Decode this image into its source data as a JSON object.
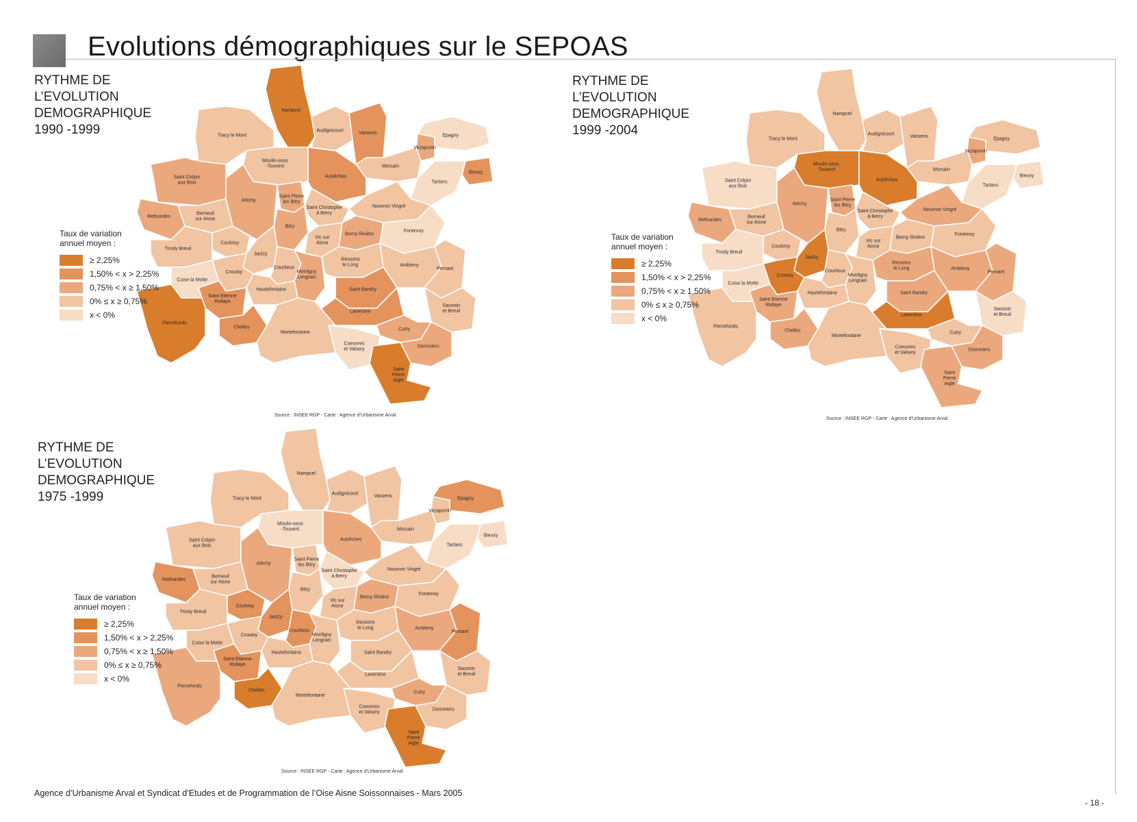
{
  "title": "Evolutions démographiques sur le SEPOAS",
  "colors": {
    "class1": "#d97d2d",
    "class2": "#e4935c",
    "class3": "#eba87c",
    "class4": "#f1c4a2",
    "class5": "#f7dcc6",
    "frame": "#b5b5b5",
    "title_square": "#7a7a7a"
  },
  "legend": {
    "title_line1": "Taux de variation",
    "title_line2": "annuel moyen :",
    "items": [
      {
        "label": "≥ 2,25%"
      },
      {
        "label": "1,50% < x > 2,25%"
      },
      {
        "label": "0,75% < x ≥ 1,50%"
      },
      {
        "label": "0% ≤ x ≥ 0,75%"
      },
      {
        "label": "x < 0%"
      }
    ]
  },
  "maps": [
    {
      "heading": [
        "RYTHME DE",
        "L’EVOLUTION",
        "DEMOGRAPHIQUE",
        "1990 -1999"
      ],
      "source": "Source : INSEE RGP - Carte : Agence d’Urbanisme Arval"
    },
    {
      "heading": [
        "RYTHME DE",
        "L’EVOLUTION",
        "DEMOGRAPHIQUE",
        "1999 -2004"
      ],
      "source": "Source : INSEE RGP - Carte : Agence d’Urbanisme Arval"
    },
    {
      "heading": [
        "RYTHME DE",
        "L’EVOLUTION",
        "DEMOGRAPHIQUE",
        "1975 -1999"
      ],
      "source": "Source : INSEE RGP - Carte : Agence d’Urbanisme Arval"
    }
  ],
  "communes": [
    {
      "lines": [
        "Nampcel"
      ],
      "class": [
        1,
        4,
        4
      ]
    },
    {
      "lines": [
        "Tracy le Mont"
      ],
      "class": [
        4,
        4,
        4
      ]
    },
    {
      "lines": [
        "Audignicourt"
      ],
      "class": [
        4,
        4,
        4
      ]
    },
    {
      "lines": [
        "Vassens"
      ],
      "class": [
        2,
        4,
        4
      ]
    },
    {
      "lines": [
        "Vezaponin"
      ],
      "class": [
        3,
        3,
        4
      ]
    },
    {
      "lines": [
        "Epagny"
      ],
      "class": [
        5,
        4,
        2
      ]
    },
    {
      "lines": [
        "Bieuxy"
      ],
      "class": [
        2,
        5,
        5
      ]
    },
    {
      "lines": [
        "Moulin-sous",
        "-Touvent"
      ],
      "class": [
        4,
        1,
        5
      ]
    },
    {
      "lines": [
        "Autrêches"
      ],
      "class": [
        2,
        1,
        3
      ]
    },
    {
      "lines": [
        "Morsain"
      ],
      "class": [
        4,
        4,
        4
      ]
    },
    {
      "lines": [
        "Tartiers"
      ],
      "class": [
        5,
        5,
        5
      ]
    },
    {
      "lines": [
        "Saint Crépin",
        "aux Bois"
      ],
      "class": [
        3,
        5,
        4
      ]
    },
    {
      "lines": [
        "Rethondes"
      ],
      "class": [
        3,
        3,
        2
      ]
    },
    {
      "lines": [
        "Berneuil",
        "sur Aisne"
      ],
      "class": [
        4,
        4,
        4
      ]
    },
    {
      "lines": [
        "Attichy"
      ],
      "class": [
        3,
        3,
        3
      ]
    },
    {
      "lines": [
        "Saint Pierre",
        "les Bitry"
      ],
      "class": [
        3,
        3,
        4
      ]
    },
    {
      "lines": [
        "Bitry"
      ],
      "class": [
        3,
        4,
        4
      ]
    },
    {
      "lines": [
        "Saint Christophe",
        "à Berry"
      ],
      "class": [
        4,
        4,
        5
      ]
    },
    {
      "lines": [
        "Nouvron Vingré"
      ],
      "class": [
        4,
        3,
        4
      ]
    },
    {
      "lines": [
        "Vic sur",
        "Aisne"
      ],
      "class": [
        4,
        4,
        4
      ]
    },
    {
      "lines": [
        "Berny Rivière"
      ],
      "class": [
        3,
        4,
        3
      ]
    },
    {
      "lines": [
        "Fontenoy"
      ],
      "class": [
        5,
        4,
        4
      ]
    },
    {
      "lines": [
        "Trosly Breuil"
      ],
      "class": [
        4,
        5,
        4
      ]
    },
    {
      "lines": [
        "Couloisy"
      ],
      "class": [
        4,
        4,
        2
      ]
    },
    {
      "lines": [
        "Jaulzy"
      ],
      "class": [
        4,
        1,
        2
      ]
    },
    {
      "lines": [
        "Cuise la Motte"
      ],
      "class": [
        5,
        5,
        4
      ]
    },
    {
      "lines": [
        "Croutoy"
      ],
      "class": [
        4,
        1,
        4
      ]
    },
    {
      "lines": [
        "Courtieux"
      ],
      "class": [
        4,
        4,
        2
      ]
    },
    {
      "lines": [
        "Montigny",
        "Lengrain"
      ],
      "class": [
        3,
        4,
        4
      ]
    },
    {
      "lines": [
        "Ressons",
        "le Long"
      ],
      "class": [
        4,
        3,
        4
      ]
    },
    {
      "lines": [
        "Ambleny"
      ],
      "class": [
        4,
        3,
        3
      ]
    },
    {
      "lines": [
        "Pernant"
      ],
      "class": [
        4,
        3,
        2
      ]
    },
    {
      "lines": [
        "Hautefontaine"
      ],
      "class": [
        4,
        4,
        4
      ]
    },
    {
      "lines": [
        "Saint Bandry"
      ],
      "class": [
        2,
        3,
        4
      ]
    },
    {
      "lines": [
        "Pierrefonds"
      ],
      "class": [
        1,
        4,
        3
      ]
    },
    {
      "lines": [
        "Saint Etienne",
        "Roilaye"
      ],
      "class": [
        2,
        3,
        2
      ]
    },
    {
      "lines": [
        "Chelles"
      ],
      "class": [
        2,
        3,
        1
      ]
    },
    {
      "lines": [
        "Laversine"
      ],
      "class": [
        2,
        1,
        4
      ]
    },
    {
      "lines": [
        "Saconin",
        "et Breuil"
      ],
      "class": [
        4,
        5,
        4
      ]
    },
    {
      "lines": [
        "Cutry"
      ],
      "class": [
        3,
        4,
        3
      ]
    },
    {
      "lines": [
        "Coeuvres",
        "et Valsery"
      ],
      "class": [
        5,
        4,
        4
      ]
    },
    {
      "lines": [
        "Mortefontaine"
      ],
      "class": [
        4,
        4,
        4
      ]
    },
    {
      "lines": [
        "Dommiers"
      ],
      "class": [
        3,
        3,
        4
      ]
    },
    {
      "lines": [
        "Saint",
        "Pierre",
        "Aigle"
      ],
      "class": [
        1,
        3,
        1
      ]
    }
  ],
  "footer": "Agence d’Urbanisme Arval et Syndicat d’Etudes et de Programmation de l’Oise Aisne Soissonnaises - Mars 2005",
  "page_number": "- 18 -"
}
